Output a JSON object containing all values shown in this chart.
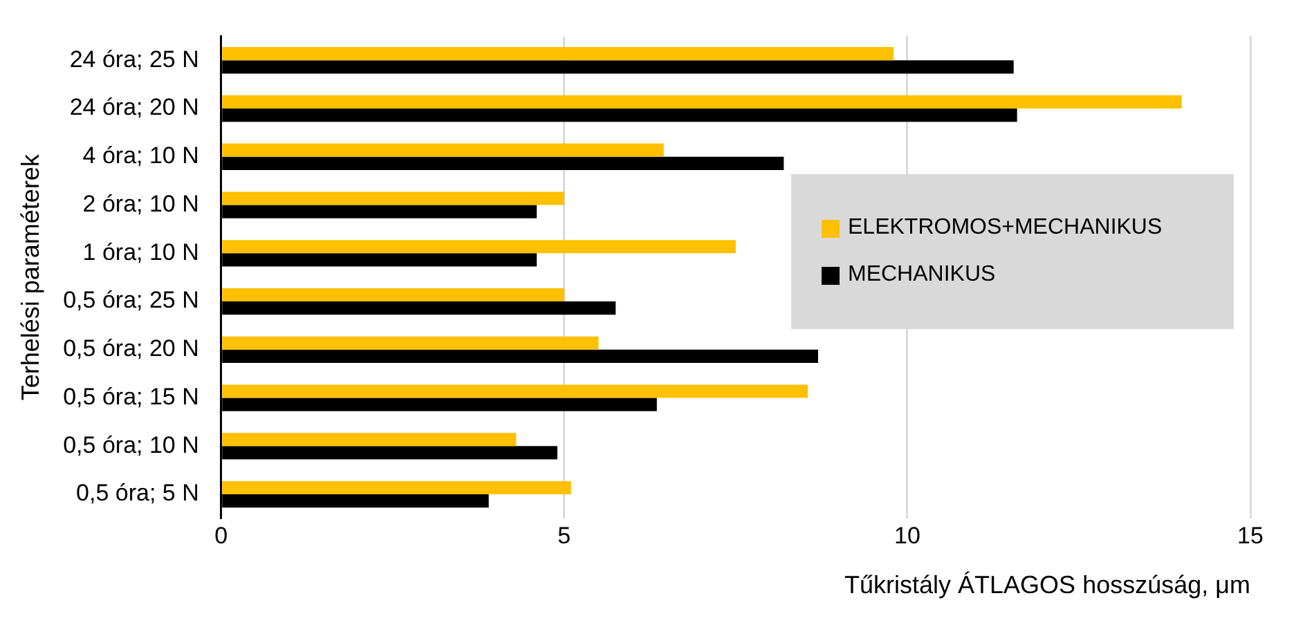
{
  "chart_data": {
    "type": "bar",
    "orientation": "horizontal",
    "xlabel": "Tűkristály ÁTLAGOS hosszúság, μm",
    "ylabel": "Terhelési paraméterek",
    "categories": [
      "24 óra; 25 N",
      "24 óra; 20 N",
      "4 óra; 10 N",
      "2 óra; 10 N",
      "1 óra; 10 N",
      "0,5 óra; 25 N",
      "0,5 óra; 20 N",
      "0,5 óra; 15 N",
      "0,5 óra; 10 N",
      "0,5 óra; 5 N"
    ],
    "series": [
      {
        "name": "ELEKTROMOS+MECHANIKUS",
        "color": "#ffc000",
        "values": [
          9.8,
          14.0,
          6.45,
          5.0,
          7.5,
          5.0,
          5.5,
          8.55,
          4.3,
          5.1
        ]
      },
      {
        "name": "MECHANIKUS",
        "color": "#000000",
        "values": [
          11.55,
          11.6,
          8.2,
          4.6,
          4.6,
          5.75,
          8.7,
          6.35,
          4.9,
          3.9
        ]
      }
    ],
    "xlim": [
      0,
      15
    ],
    "xticks": [
      0,
      5,
      10,
      15
    ],
    "grid": "x",
    "legend": "right"
  }
}
